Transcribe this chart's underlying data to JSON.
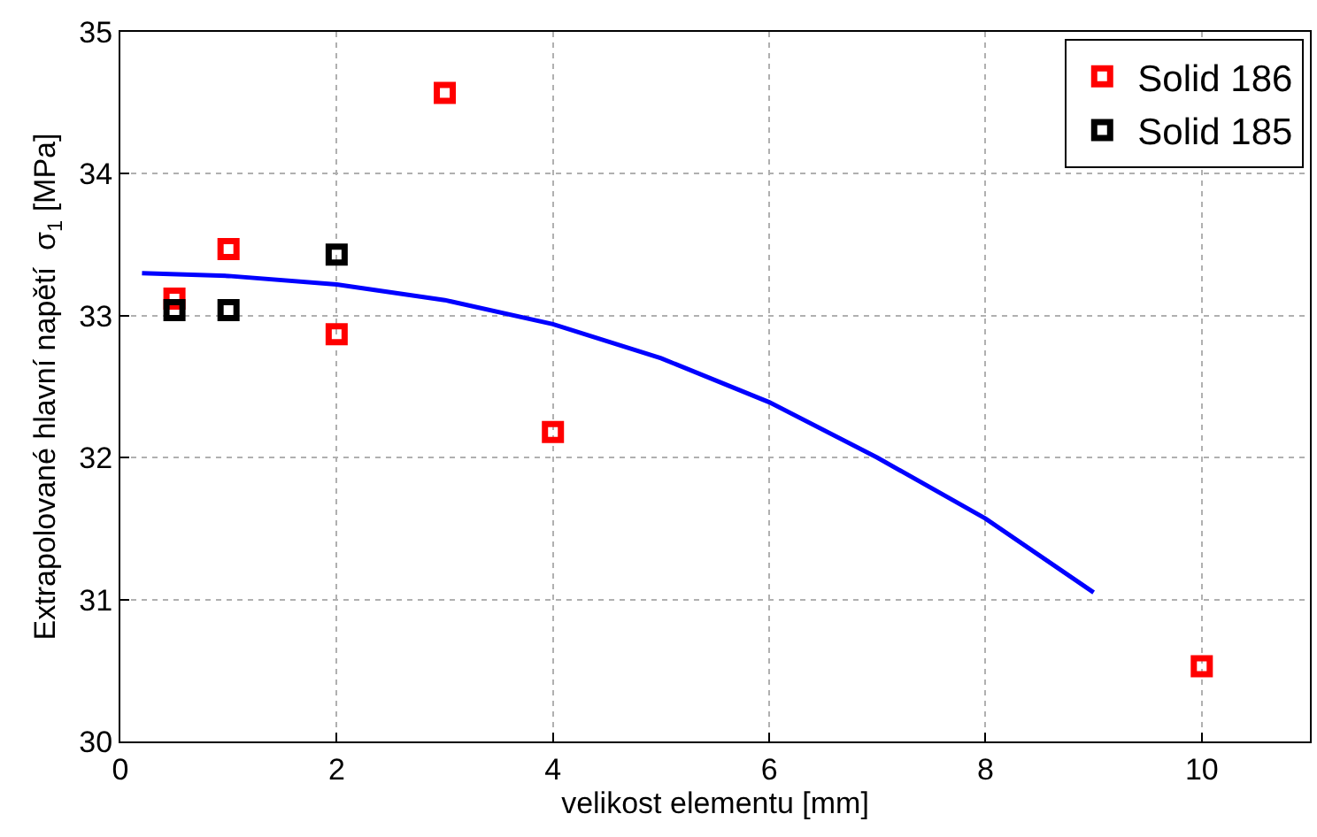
{
  "chart_data": {
    "type": "scatter",
    "xlabel": "velikost elementu [mm]",
    "ylabel": "Extrapolované hlavní napětí  σ$_{1}$ [MPa]",
    "xlim": [
      0,
      11
    ],
    "xticks": [
      0,
      2,
      4,
      6,
      8,
      10
    ],
    "ylim": [
      30,
      35
    ],
    "yticks": [
      30,
      31,
      32,
      33,
      34,
      35
    ],
    "grid": true,
    "legend": "top right",
    "marker": "square",
    "series": [
      {
        "type": "line",
        "color": "#0000ff",
        "x": [
          0.2,
          1,
          2,
          3,
          4,
          5,
          6,
          7,
          8,
          9
        ],
        "values": [
          33.3,
          33.28,
          33.22,
          33.11,
          32.94,
          32.7,
          32.39,
          32.0,
          31.57,
          31.05
        ],
        "marker": "none",
        "line_style": "solid"
      },
      {
        "name": "Solid 186",
        "color": "#ff0000",
        "x": [
          0.5,
          1,
          2,
          3,
          4,
          10
        ],
        "values": [
          33.12,
          33.47,
          32.87,
          34.57,
          32.18,
          30.53
        ]
      },
      {
        "name": "Solid 185",
        "color": "#000000",
        "x": [
          0.5,
          1,
          2
        ],
        "values": [
          33.04,
          33.04,
          33.43
        ]
      }
    ]
  }
}
